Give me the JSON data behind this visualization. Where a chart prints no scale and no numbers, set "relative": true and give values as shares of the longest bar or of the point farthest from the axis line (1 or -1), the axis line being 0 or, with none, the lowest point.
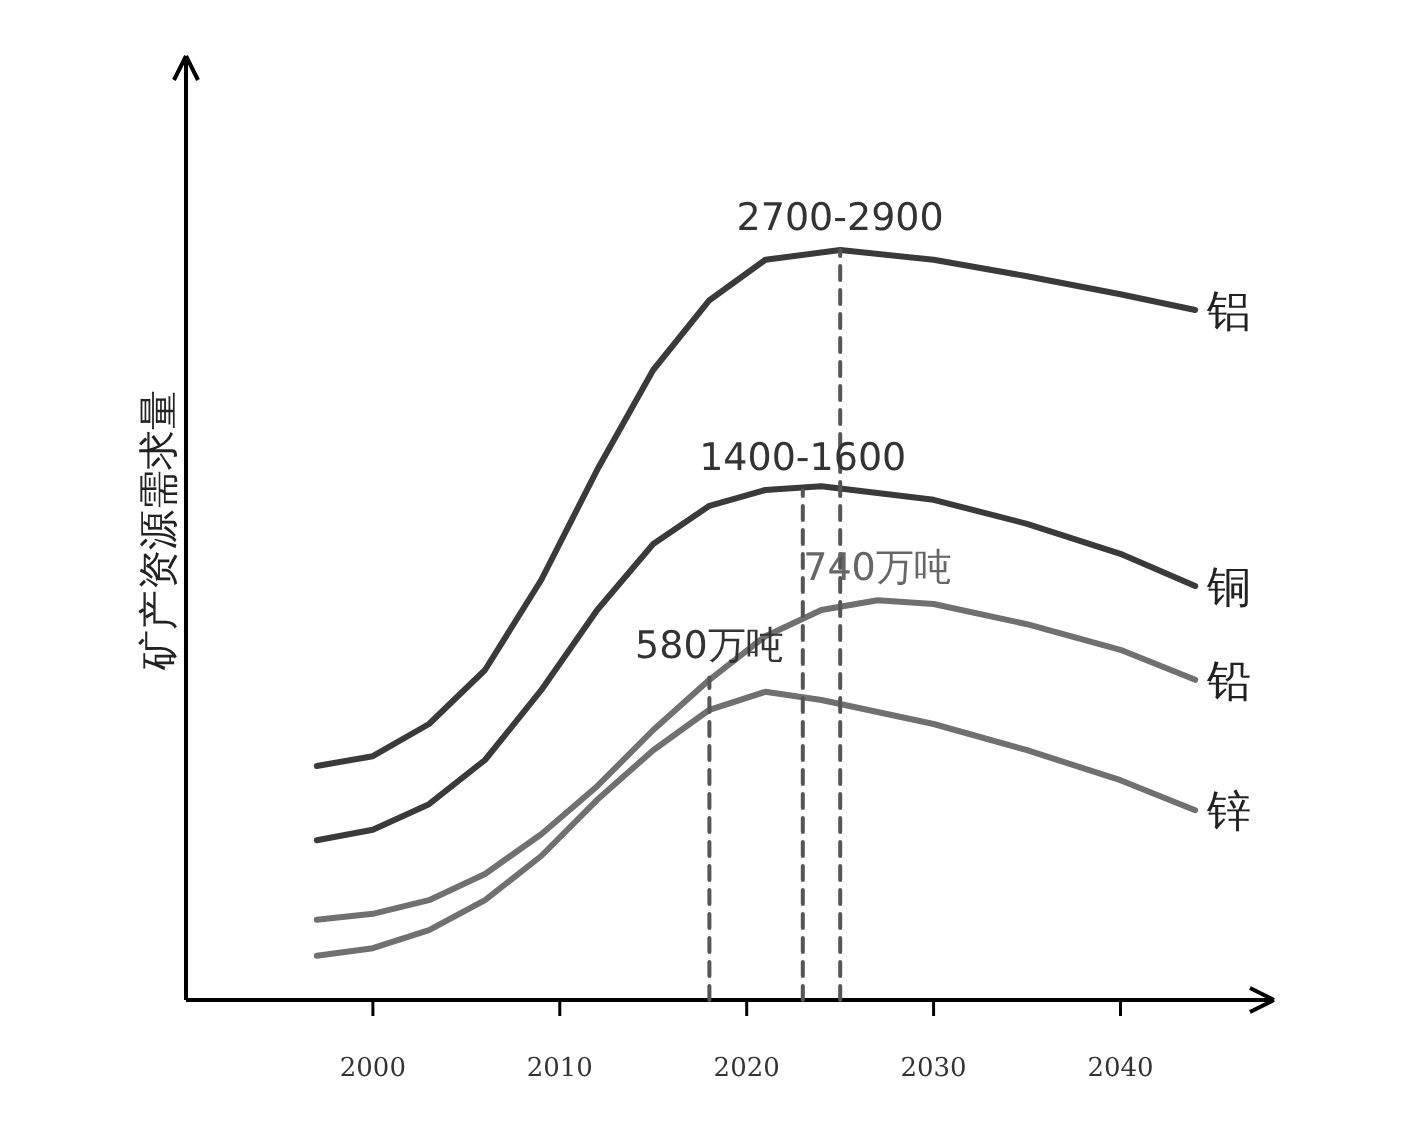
{
  "chart_data": {
    "type": "line",
    "relative": true,
    "ylabel": "矿产资源需求量",
    "xlim": [
      1990,
      2048
    ],
    "xticks": [
      2000,
      2010,
      2020,
      2030,
      2040
    ],
    "grid": false,
    "legend": false,
    "marker": "none",
    "line_style": "solid",
    "series": [
      {
        "name": "铝",
        "color": "#3a3a3a",
        "x": [
          1997,
          2000,
          2003,
          2006,
          2009,
          2012,
          2015,
          2018,
          2021,
          2025,
          2030,
          2035,
          2040,
          2044
        ],
        "values": [
          0.312,
          0.325,
          0.368,
          0.44,
          0.56,
          0.707,
          0.84,
          0.933,
          0.987,
          1,
          0.987,
          0.965,
          0.941,
          0.92
        ]
      },
      {
        "name": "铜",
        "color": "#3a3a3a",
        "x": [
          1997,
          2000,
          2003,
          2006,
          2009,
          2012,
          2015,
          2018,
          2021,
          2024,
          2030,
          2035,
          2040,
          2044
        ],
        "values": [
          0.213,
          0.227,
          0.261,
          0.32,
          0.413,
          0.52,
          0.608,
          0.659,
          0.68,
          0.685,
          0.667,
          0.635,
          0.595,
          0.552
        ]
      },
      {
        "name": "铅",
        "color": "#707070",
        "x": [
          1997,
          2000,
          2003,
          2006,
          2009,
          2012,
          2015,
          2018,
          2021,
          2024,
          2027,
          2030,
          2035,
          2040,
          2044
        ],
        "values": [
          0.107,
          0.115,
          0.133,
          0.168,
          0.221,
          0.285,
          0.36,
          0.427,
          0.485,
          0.52,
          0.533,
          0.528,
          0.501,
          0.467,
          0.427
        ]
      },
      {
        "name": "锌",
        "color": "#707070",
        "x": [
          1997,
          2000,
          2003,
          2006,
          2009,
          2012,
          2015,
          2018,
          2021,
          2024,
          2030,
          2035,
          2040,
          2044
        ],
        "values": [
          0.059,
          0.069,
          0.093,
          0.133,
          0.192,
          0.267,
          0.333,
          0.387,
          0.411,
          0.4,
          0.368,
          0.333,
          0.293,
          0.253
        ]
      },
      {
        "color": "#555555",
        "line_style": "dashed",
        "x": [
          2018,
          2018
        ],
        "values": [
          0,
          0.43
        ]
      },
      {
        "color": "#555555",
        "line_style": "dashed",
        "x": [
          2023,
          2023
        ],
        "values": [
          0,
          0.68
        ]
      },
      {
        "color": "#555555",
        "line_style": "dashed",
        "x": [
          2025,
          2025
        ],
        "values": [
          0,
          1
        ]
      }
    ],
    "annotations": [
      {
        "text": "2700-2900",
        "x": 2025,
        "y": 1
      },
      {
        "text": "1400-1600",
        "x": 2023,
        "y": 0.68
      },
      {
        "text": "740万吨",
        "x": 2027,
        "y": 0.533
      },
      {
        "text": "580万吨",
        "x": 2018,
        "y": 0.43
      }
    ]
  }
}
